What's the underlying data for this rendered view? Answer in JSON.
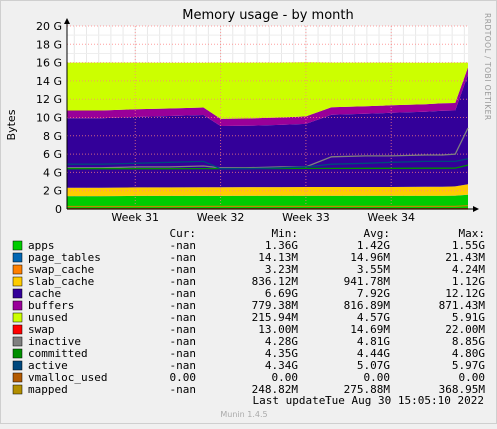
{
  "chart_data": {
    "type": "area",
    "title": "Memory usage - by month",
    "ylabel": "Bytes",
    "ylim": [
      0,
      20
    ],
    "y_unit": "G",
    "yticks": [
      "0",
      "2 G",
      "4 G",
      "6 G",
      "8 G",
      "10 G",
      "12 G",
      "14 G",
      "16 G",
      "18 G",
      "20 G"
    ],
    "x_ticks": [
      "Week 31",
      "Week 32",
      "Week 33",
      "Week 34"
    ],
    "x_tick_positions_weeks": [
      31,
      32,
      33,
      34
    ],
    "grid": true,
    "x": [
      30.2,
      30.6,
      31.0,
      31.4,
      31.8,
      32.0,
      32.3,
      32.7,
      33.0,
      33.3,
      33.7,
      34.0,
      34.4,
      34.6,
      34.75,
      34.9
    ],
    "stack": [
      {
        "name": "apps",
        "color": "#00cc00",
        "values": [
          1.4,
          1.4,
          1.42,
          1.42,
          1.42,
          1.42,
          1.43,
          1.43,
          1.43,
          1.43,
          1.43,
          1.43,
          1.44,
          1.44,
          1.45,
          1.55
        ]
      },
      {
        "name": "page_tables",
        "color": "#0066b3",
        "values": [
          0.015,
          0.015,
          0.015,
          0.015,
          0.015,
          0.015,
          0.015,
          0.015,
          0.015,
          0.015,
          0.015,
          0.015,
          0.015,
          0.015,
          0.015,
          0.021
        ]
      },
      {
        "name": "swap_cache",
        "color": "#ff8000",
        "values": [
          0.004,
          0.004,
          0.004,
          0.004,
          0.004,
          0.004,
          0.004,
          0.004,
          0.004,
          0.004,
          0.004,
          0.004,
          0.004,
          0.004,
          0.004,
          0.004
        ]
      },
      {
        "name": "slab_cache",
        "color": "#ffcc00",
        "values": [
          0.9,
          0.9,
          0.92,
          0.92,
          0.93,
          0.93,
          0.94,
          0.94,
          0.95,
          0.95,
          0.96,
          0.96,
          0.97,
          0.98,
          1.0,
          1.12
        ]
      },
      {
        "name": "cache",
        "color": "#330099",
        "values": [
          7.6,
          7.6,
          7.7,
          7.8,
          7.9,
          6.7,
          6.7,
          6.8,
          6.9,
          7.9,
          8.0,
          8.1,
          8.2,
          8.3,
          8.3,
          12.0
        ]
      },
      {
        "name": "buffers",
        "color": "#990099",
        "values": [
          0.85,
          0.85,
          0.84,
          0.83,
          0.82,
          0.8,
          0.8,
          0.81,
          0.82,
          0.82,
          0.82,
          0.82,
          0.82,
          0.82,
          0.82,
          0.8
        ]
      },
      {
        "name": "unused",
        "color": "#ccff00",
        "values": [
          5.23,
          5.23,
          5.1,
          5.0,
          4.9,
          6.13,
          6.11,
          6.0,
          5.91,
          4.88,
          4.77,
          4.67,
          4.54,
          4.43,
          4.41,
          0.5
        ]
      }
    ],
    "lines": [
      {
        "name": "swap",
        "color": "#ff0000",
        "values": [
          0.015,
          0.015,
          0.015,
          0.015,
          0.015,
          0.015,
          0.015,
          0.015,
          0.015,
          0.015,
          0.015,
          0.015,
          0.015,
          0.015,
          0.015,
          0.022
        ]
      },
      {
        "name": "inactive",
        "color": "#808080",
        "values": [
          4.5,
          4.5,
          4.6,
          4.6,
          4.7,
          4.5,
          4.5,
          4.6,
          4.6,
          5.7,
          5.8,
          5.8,
          5.9,
          5.9,
          6.0,
          8.85
        ]
      },
      {
        "name": "committed",
        "color": "#008f00",
        "values": [
          4.4,
          4.4,
          4.4,
          4.4,
          4.42,
          4.42,
          4.43,
          4.43,
          4.44,
          4.44,
          4.45,
          4.45,
          4.46,
          4.46,
          4.47,
          4.8
        ]
      },
      {
        "name": "active",
        "color": "#00487d",
        "values": [
          4.9,
          4.9,
          5.0,
          5.1,
          5.2,
          4.4,
          4.4,
          4.5,
          4.6,
          4.9,
          5.0,
          5.1,
          5.2,
          5.2,
          5.2,
          5.5
        ]
      },
      {
        "name": "vmalloc_used",
        "color": "#b35a00",
        "values": [
          0,
          0,
          0,
          0,
          0,
          0,
          0,
          0,
          0,
          0,
          0,
          0,
          0,
          0,
          0,
          0
        ]
      },
      {
        "name": "mapped",
        "color": "#b38f00",
        "values": [
          0.27,
          0.27,
          0.27,
          0.27,
          0.28,
          0.28,
          0.28,
          0.28,
          0.28,
          0.28,
          0.28,
          0.28,
          0.28,
          0.28,
          0.28,
          0.37
        ]
      }
    ]
  },
  "legend": {
    "headers": {
      "cur": "Cur:",
      "min": "Min:",
      "avg": "Avg:",
      "max": "Max:"
    },
    "rows": [
      {
        "name": "apps",
        "color": "#00cc00",
        "cur": "-nan",
        "min": "1.36G",
        "avg": "1.42G",
        "max": "1.55G"
      },
      {
        "name": "page_tables",
        "color": "#0066b3",
        "cur": "-nan",
        "min": "14.13M",
        "avg": "14.96M",
        "max": "21.43M"
      },
      {
        "name": "swap_cache",
        "color": "#ff8000",
        "cur": "-nan",
        "min": "3.23M",
        "avg": "3.55M",
        "max": "4.24M"
      },
      {
        "name": "slab_cache",
        "color": "#ffcc00",
        "cur": "-nan",
        "min": "836.12M",
        "avg": "941.78M",
        "max": "1.12G"
      },
      {
        "name": "cache",
        "color": "#330099",
        "cur": "-nan",
        "min": "6.69G",
        "avg": "7.92G",
        "max": "12.12G"
      },
      {
        "name": "buffers",
        "color": "#990099",
        "cur": "-nan",
        "min": "779.38M",
        "avg": "816.89M",
        "max": "871.43M"
      },
      {
        "name": "unused",
        "color": "#ccff00",
        "cur": "-nan",
        "min": "215.94M",
        "avg": "4.57G",
        "max": "5.91G"
      },
      {
        "name": "swap",
        "color": "#ff0000",
        "cur": "-nan",
        "min": "13.00M",
        "avg": "14.69M",
        "max": "22.00M"
      },
      {
        "name": "inactive",
        "color": "#808080",
        "cur": "-nan",
        "min": "4.28G",
        "avg": "4.81G",
        "max": "8.85G"
      },
      {
        "name": "committed",
        "color": "#008f00",
        "cur": "-nan",
        "min": "4.35G",
        "avg": "4.44G",
        "max": "4.80G"
      },
      {
        "name": "active",
        "color": "#00487d",
        "cur": "-nan",
        "min": "4.34G",
        "avg": "5.07G",
        "max": "5.97G"
      },
      {
        "name": "vmalloc_used",
        "color": "#b35a00",
        "cur": "0.00",
        "min": "0.00",
        "avg": "0.00",
        "max": "0.00"
      },
      {
        "name": "mapped",
        "color": "#b38f00",
        "cur": "-nan",
        "min": "248.82M",
        "avg": "275.88M",
        "max": "368.95M"
      }
    ]
  },
  "footer": {
    "last_update_label": "Last update:",
    "last_update_value": "Tue Aug 30 15:05:10 2022",
    "version": "Munin 1.4.5"
  },
  "watermark": "RRDTOOL / TOBI OETIKER",
  "colors": {
    "background": "#f0f0f0",
    "plot_bg": "#ffffff",
    "grid": "#ff8080",
    "axis": "#000000"
  }
}
